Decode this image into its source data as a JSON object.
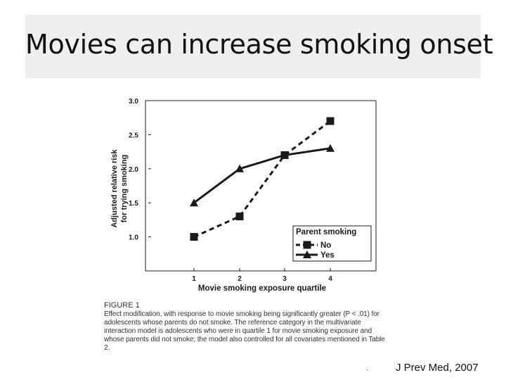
{
  "slide": {
    "title": "Movies can increase smoking onset",
    "citation": "J Prev Med, 2007",
    "dot": "."
  },
  "figure": {
    "label": "FIGURE 1",
    "caption": "Effect modification, with response to movie smoking being significantly greater (P < .01) for adolescents whose parents do not smoke. The reference category in the multivariate interaction model is adolescents who were in quartile 1 for movie smoking exposure and whose parents did not smoke; the model also controlled for all covariates mentioned in Table 2."
  },
  "chart_data": {
    "type": "line",
    "title": "",
    "xlabel": "Movie smoking exposure quartile",
    "ylabel": "Adjusted relative risk for trying smoking",
    "ylabel_lines": [
      "Adjusted relative risk",
      "for trying smoking"
    ],
    "categories": [
      "1",
      "2",
      "3",
      "4"
    ],
    "yticks": [
      "1.0",
      "1.5",
      "2.0",
      "2.5",
      "3.0"
    ],
    "ylim": [
      0.5,
      3.0
    ],
    "legend_title": "Parent smoking",
    "legend_placement": "bottom-right",
    "grid": false,
    "series": [
      {
        "name": "No",
        "values": [
          1.0,
          1.3,
          2.2,
          2.7
        ],
        "marker": "square",
        "dash": "dashed",
        "color": "#1a1a1a"
      },
      {
        "name": "Yes",
        "values": [
          1.5,
          2.0,
          2.2,
          2.3
        ],
        "marker": "triangle",
        "dash": "solid",
        "color": "#1a1a1a"
      }
    ]
  }
}
